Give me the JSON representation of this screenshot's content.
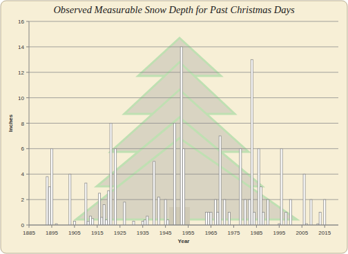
{
  "chart_data": {
    "type": "bar",
    "title": "Observed Measurable Snow Depth for Past Christmas Days",
    "x_label": "Year",
    "y_label": "Inches",
    "x": [
      1893,
      1894,
      1895,
      1897,
      1903,
      1905,
      1910,
      1911,
      1912,
      1913,
      1916,
      1917,
      1918,
      1919,
      1920,
      1921,
      1923,
      1927,
      1931,
      1935,
      1936,
      1937,
      1940,
      1942,
      1945,
      1946,
      1949,
      1952,
      1953,
      1963,
      1964,
      1965,
      1967,
      1968,
      1969,
      1971,
      1973,
      1978,
      1980,
      1982,
      1983,
      1984,
      1986,
      1987,
      1988,
      1990,
      1995,
      1996,
      1998,
      2000,
      2006,
      2007,
      2009,
      2012,
      2013,
      2015
    ],
    "values": [
      3.8,
      3.0,
      6.0,
      0.1,
      4.0,
      0.3,
      3.3,
      0.3,
      0.7,
      0.5,
      2.5,
      0.6,
      1.6,
      0.4,
      2.7,
      8.0,
      6.0,
      1.8,
      0.3,
      0.3,
      0.4,
      0.7,
      5.0,
      2.2,
      2.0,
      0.4,
      8.0,
      14.0,
      6.0,
      1.0,
      1.0,
      1.0,
      2.0,
      1.0,
      7.0,
      2.0,
      1.0,
      6.0,
      2.0,
      2.0,
      13.0,
      1.0,
      6.0,
      3.0,
      1.0,
      2.0,
      0.1,
      6.0,
      1.0,
      2.0,
      4.0,
      0.1,
      2.0,
      0.1,
      1.0,
      2.0
    ],
    "color": "#ffffff",
    "xlim": [
      1885,
      2021
    ],
    "xticks": [
      1885,
      1895,
      1905,
      1915,
      1925,
      1935,
      1945,
      1955,
      1965,
      1975,
      1985,
      1995,
      2005,
      2015
    ],
    "ylim": [
      0,
      16
    ],
    "yticks": [
      0,
      2,
      4,
      6,
      8,
      10,
      12,
      14,
      16
    ],
    "grid": true
  }
}
